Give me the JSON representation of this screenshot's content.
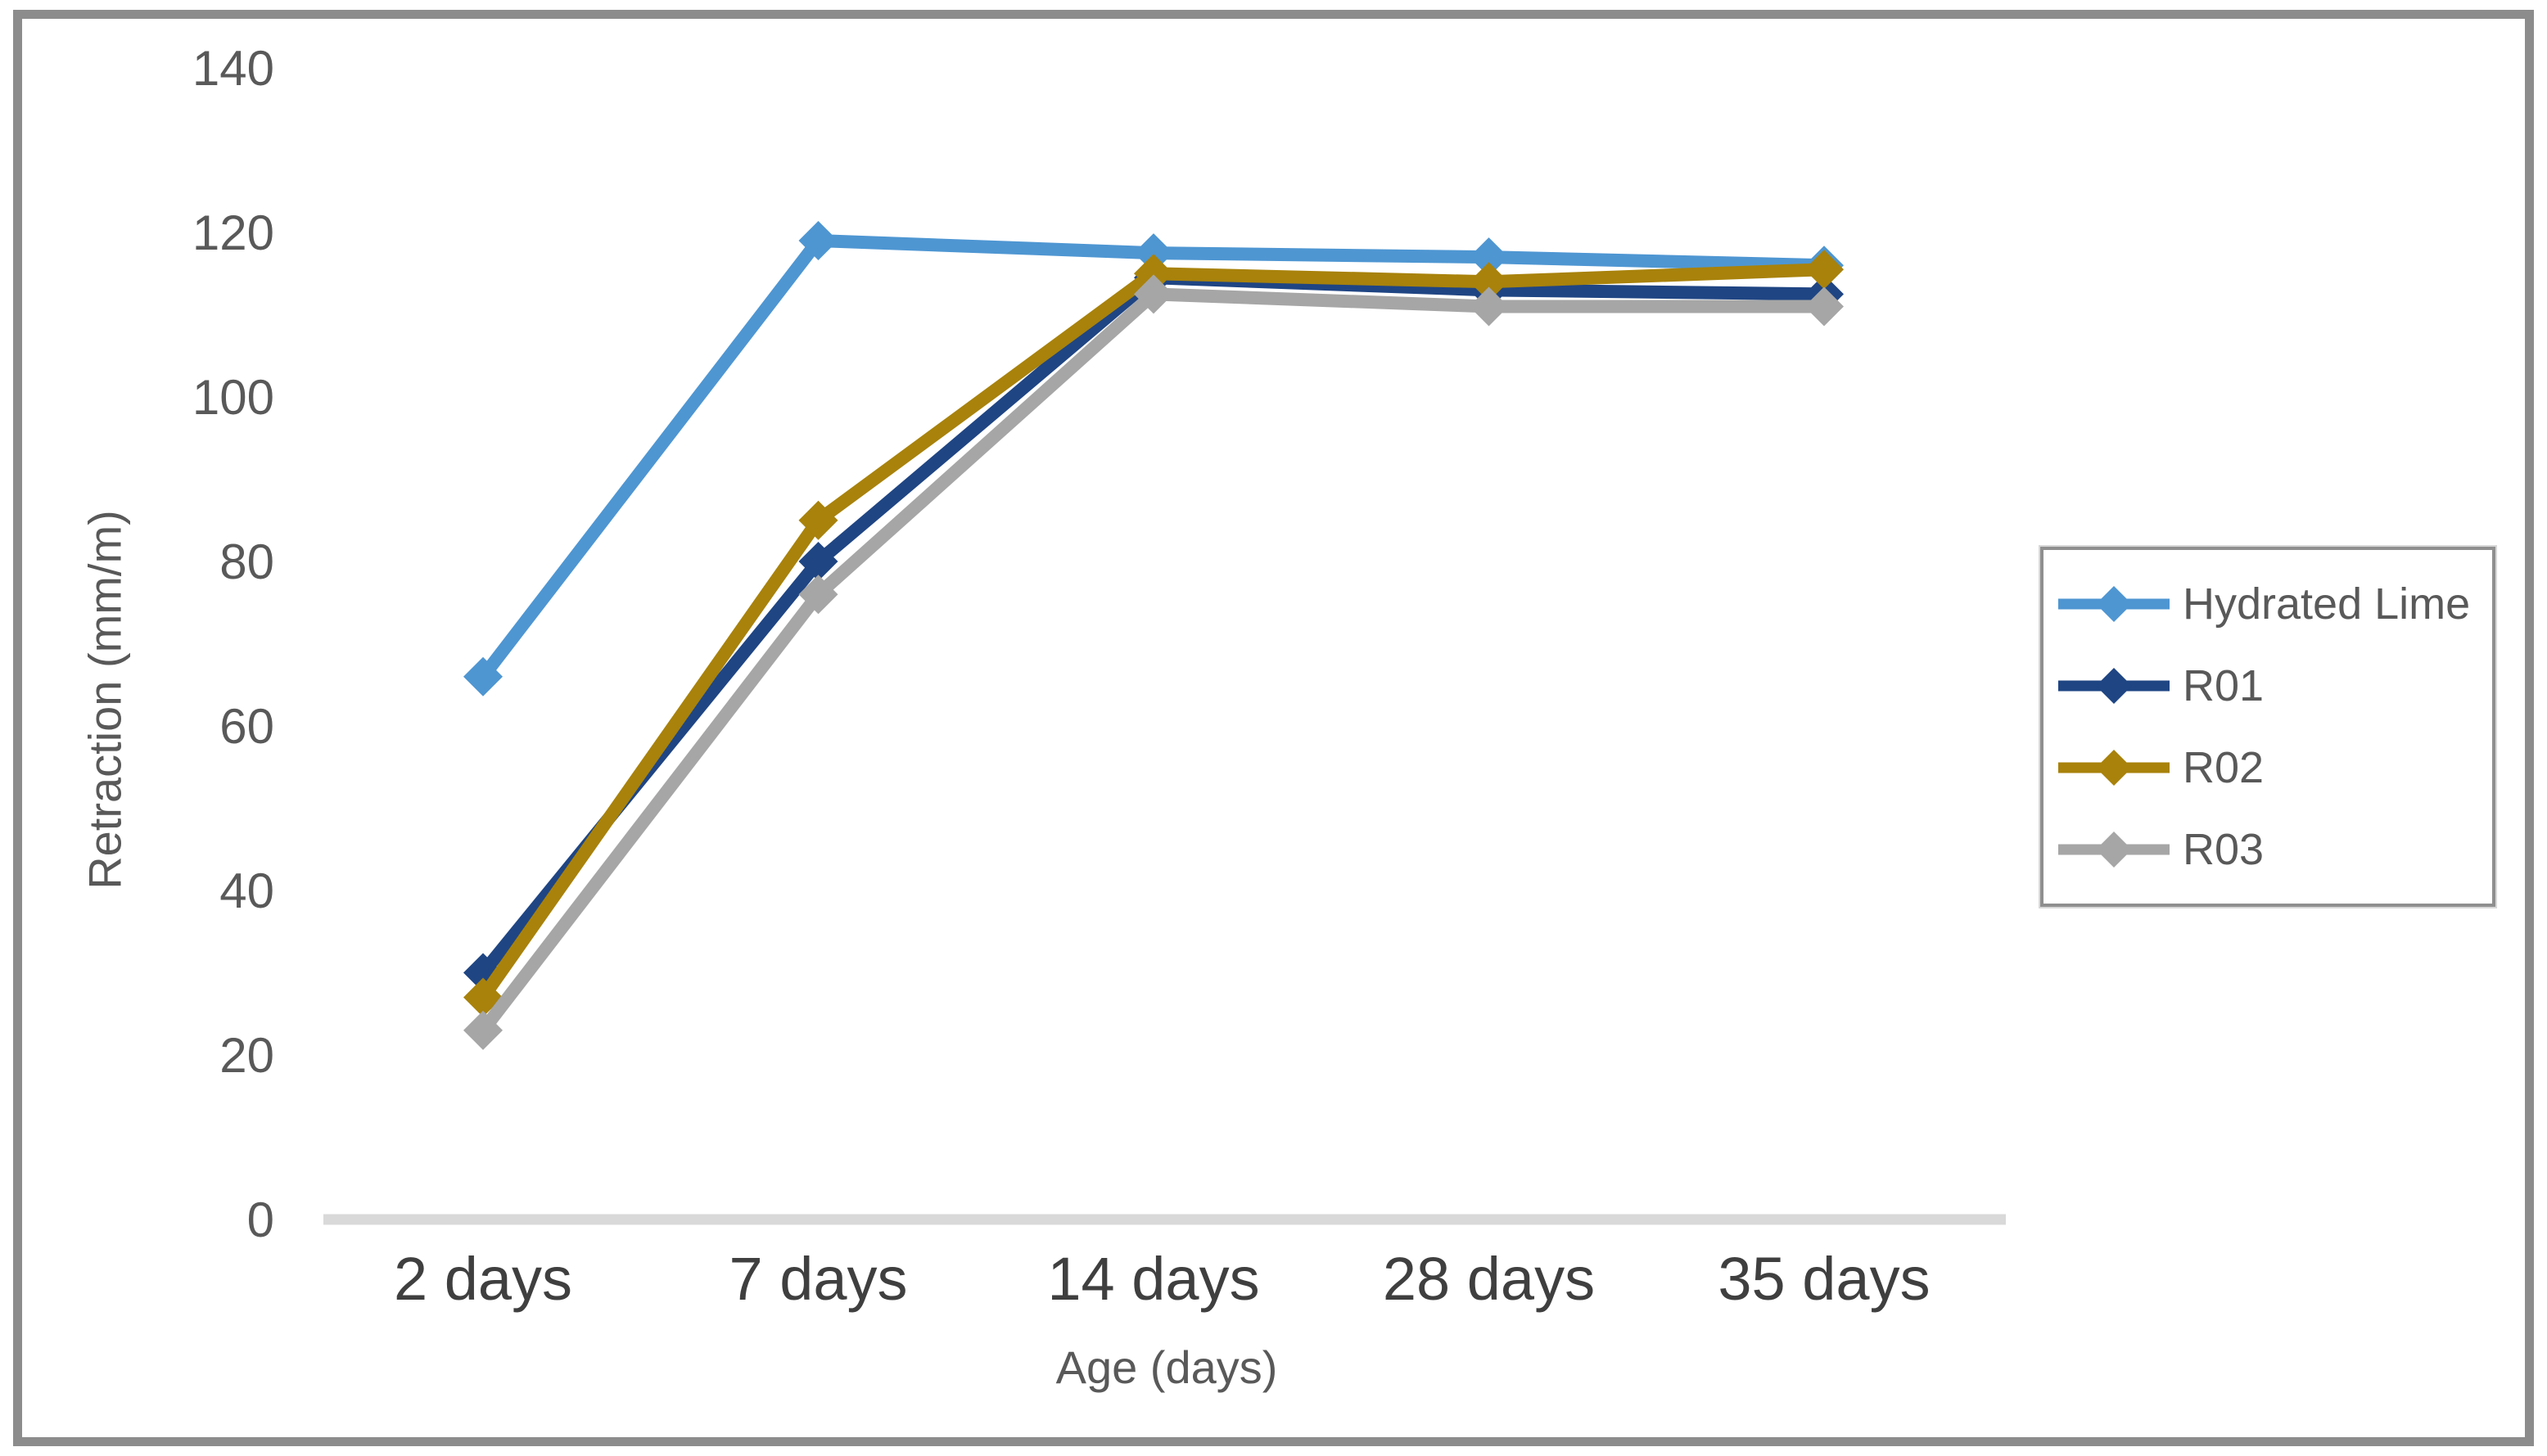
{
  "figure": {
    "background": "#ffffff",
    "border_color": "#8c8c8c"
  },
  "chart_data": {
    "type": "line",
    "title": "",
    "xlabel": "Age (days)",
    "ylabel": "Retraction (mm/m)",
    "categories": [
      "2 days",
      "7 days",
      "14 days",
      "28 days",
      "35 days"
    ],
    "series": [
      {
        "name": "Hydrated Lime",
        "color": "#4E96D2",
        "marker": "diamond",
        "values": [
          66,
          119,
          117.5,
          117,
          116
        ]
      },
      {
        "name": "R01",
        "color": "#1F4583",
        "marker": "diamond",
        "values": [
          30,
          80,
          114.5,
          113,
          112.5
        ]
      },
      {
        "name": "R02",
        "color": "#A8820B",
        "marker": "diamond",
        "values": [
          27,
          85,
          115,
          114,
          115.5
        ]
      },
      {
        "name": "R03",
        "color": "#A6A6A6",
        "marker": "diamond",
        "values": [
          23,
          76,
          112.5,
          111,
          111
        ]
      }
    ],
    "ylim": [
      0,
      140
    ],
    "yticks": [
      0,
      20,
      40,
      60,
      80,
      100,
      120,
      140
    ],
    "grid": false,
    "legend_position": "right",
    "axis_line_color": "#D9D9D9",
    "ytick_label_color": "#595959",
    "xtick_label_color": "#3f3f3f"
  }
}
